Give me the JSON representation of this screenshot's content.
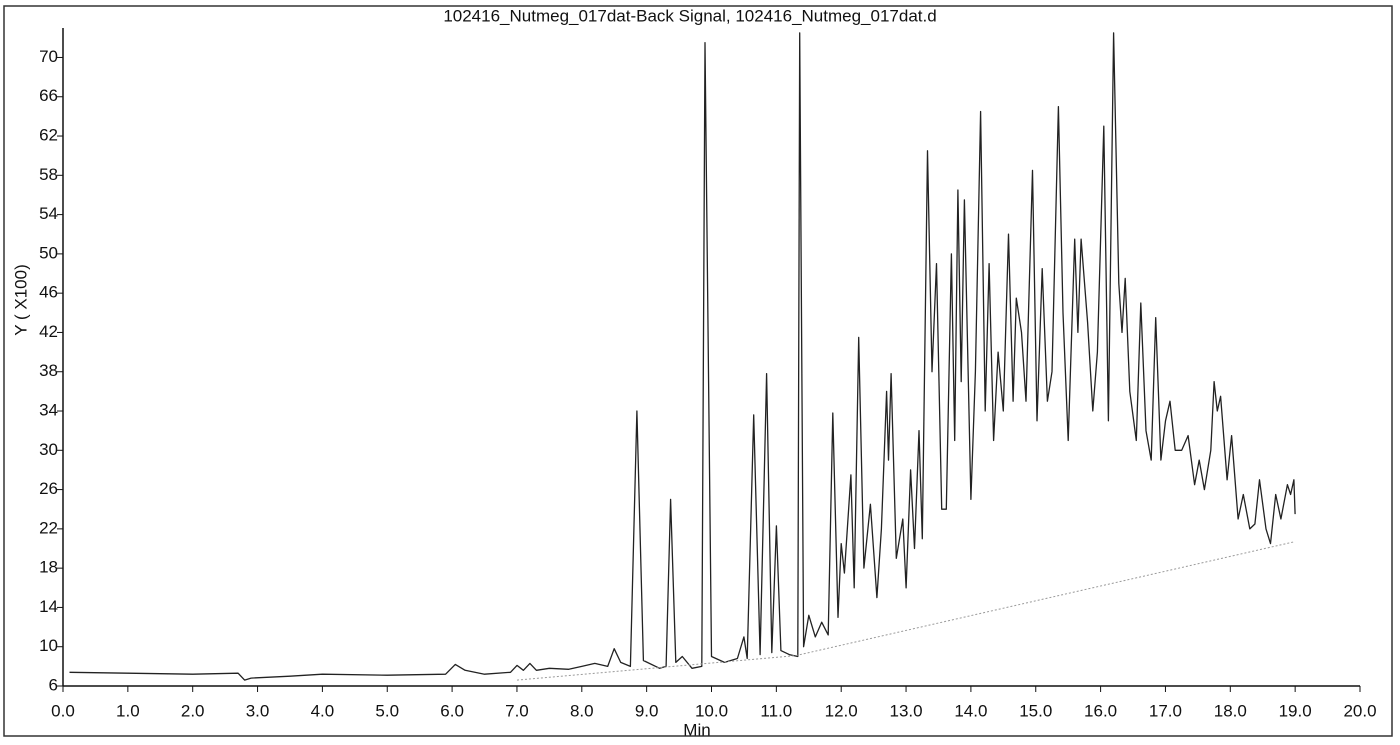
{
  "chart_data": {
    "type": "line",
    "title": "102416_Nutmeg_017dat-Back Signal, 102416_Nutmeg_017dat.d",
    "x_label": "Min",
    "y_label": "Y ( X100)",
    "xlim": [
      0,
      20
    ],
    "ylim": [
      6,
      73
    ],
    "xticks": [
      {
        "value": 0,
        "label": "0.0"
      },
      {
        "value": 1,
        "label": "1.0"
      },
      {
        "value": 2,
        "label": "2.0"
      },
      {
        "value": 3,
        "label": "3.0"
      },
      {
        "value": 4,
        "label": "4.0"
      },
      {
        "value": 5,
        "label": "5.0"
      },
      {
        "value": 6,
        "label": "6.0"
      },
      {
        "value": 7,
        "label": "7.0"
      },
      {
        "value": 8,
        "label": "8.0"
      },
      {
        "value": 9,
        "label": "9.0"
      },
      {
        "value": 10,
        "label": "10.0"
      },
      {
        "value": 11,
        "label": "11.0"
      },
      {
        "value": 12,
        "label": "12.0"
      },
      {
        "value": 13,
        "label": "13.0"
      },
      {
        "value": 14,
        "label": "14.0"
      },
      {
        "value": 15,
        "label": "15.0"
      },
      {
        "value": 16,
        "label": "16.0"
      },
      {
        "value": 17,
        "label": "17.0"
      },
      {
        "value": 18,
        "label": "18.0"
      },
      {
        "value": 19,
        "label": "19.0"
      },
      {
        "value": 20,
        "label": "20.0"
      }
    ],
    "yticks": [
      6,
      10,
      14,
      18,
      22,
      26,
      30,
      34,
      38,
      42,
      46,
      50,
      54,
      58,
      62,
      66,
      70
    ],
    "series": [
      {
        "color": "#222222",
        "x": [
          0.1,
          1.0,
          2.0,
          2.7,
          2.8,
          2.9,
          3.5,
          4.0,
          5.0,
          5.9,
          6.05,
          6.2,
          6.5,
          6.9,
          7.0,
          7.1,
          7.2,
          7.3,
          7.5,
          7.8,
          8.0,
          8.2,
          8.4,
          8.5,
          8.6,
          8.75,
          8.85,
          8.95,
          9.2,
          9.3,
          9.37,
          9.45,
          9.55,
          9.7,
          9.85,
          9.9,
          10.0,
          10.2,
          10.4,
          10.5,
          10.55,
          10.65,
          10.75,
          10.85,
          10.93,
          11.0,
          11.07,
          11.2,
          11.33,
          11.36,
          11.42,
          11.5,
          11.6,
          11.7,
          11.8,
          11.87,
          11.95,
          12.0,
          12.05,
          12.15,
          12.2,
          12.27,
          12.35,
          12.45,
          12.55,
          12.62,
          12.7,
          12.73,
          12.77,
          12.85,
          12.95,
          13.0,
          13.07,
          13.13,
          13.2,
          13.25,
          13.33,
          13.4,
          13.47,
          13.55,
          13.62,
          13.7,
          13.75,
          13.8,
          13.85,
          13.9,
          14.0,
          14.07,
          14.15,
          14.22,
          14.28,
          14.35,
          14.42,
          14.5,
          14.58,
          14.65,
          14.7,
          14.78,
          14.85,
          14.95,
          15.02,
          15.1,
          15.18,
          15.25,
          15.35,
          15.42,
          15.5,
          15.6,
          15.65,
          15.7,
          15.8,
          15.88,
          15.95,
          16.05,
          16.12,
          16.2,
          16.28,
          16.33,
          16.38,
          16.45,
          16.55,
          16.62,
          16.7,
          16.78,
          16.85,
          16.93,
          17.0,
          17.07,
          17.15,
          17.25,
          17.35,
          17.45,
          17.52,
          17.6,
          17.7,
          17.75,
          17.8,
          17.85,
          17.95,
          18.02,
          18.12,
          18.2,
          18.3,
          18.38,
          18.45,
          18.55,
          18.62,
          18.7,
          18.78,
          18.88,
          18.93,
          18.98,
          19.0
        ],
        "values": [
          7.4,
          7.3,
          7.2,
          7.3,
          6.6,
          6.8,
          7.0,
          7.2,
          7.1,
          7.2,
          8.2,
          7.6,
          7.2,
          7.4,
          8.1,
          7.6,
          8.3,
          7.6,
          7.8,
          7.7,
          8.0,
          8.3,
          8.0,
          9.8,
          8.4,
          8.0,
          34.0,
          8.6,
          7.8,
          8.0,
          25.0,
          8.4,
          9.0,
          7.8,
          8.0,
          71.5,
          9.0,
          8.4,
          8.8,
          11.0,
          8.8,
          33.6,
          9.2,
          37.8,
          9.4,
          22.3,
          9.6,
          9.2,
          9.0,
          72.5,
          10.0,
          13.2,
          11.0,
          12.5,
          11.2,
          33.8,
          13.0,
          20.5,
          17.5,
          27.5,
          16.0,
          41.5,
          18.0,
          24.5,
          15.0,
          22.0,
          36.0,
          29.0,
          37.8,
          19.0,
          23.0,
          16.0,
          28.0,
          20.0,
          32.0,
          21.0,
          60.5,
          38.0,
          49.0,
          24.0,
          24.0,
          50.0,
          31.0,
          56.5,
          37.0,
          55.5,
          25.0,
          38.0,
          64.5,
          34.0,
          49.0,
          31.0,
          40.0,
          34.0,
          52.0,
          35.0,
          45.5,
          42.0,
          35.0,
          58.5,
          33.0,
          48.5,
          35.0,
          38.0,
          65.0,
          44.0,
          31.0,
          51.5,
          42.0,
          51.5,
          43.0,
          34.0,
          40.0,
          63.0,
          33.0,
          72.5,
          47.0,
          42.0,
          47.5,
          36.0,
          31.0,
          45.0,
          32.0,
          29.0,
          43.5,
          29.0,
          33.0,
          35.0,
          30.0,
          30.0,
          31.5,
          26.5,
          29.0,
          26.0,
          30.0,
          37.0,
          34.0,
          35.5,
          27.0,
          31.5,
          23.0,
          25.5,
          22.0,
          22.5,
          27.0,
          22.0,
          20.5,
          25.5,
          23.0,
          26.5,
          25.5,
          27.0,
          23.5
        ]
      },
      {
        "color": "#9a9a9a",
        "dashed": true,
        "x": [
          7.0,
          11.3,
          19.0
        ],
        "values": [
          6.6,
          9.1,
          20.7
        ]
      }
    ]
  }
}
